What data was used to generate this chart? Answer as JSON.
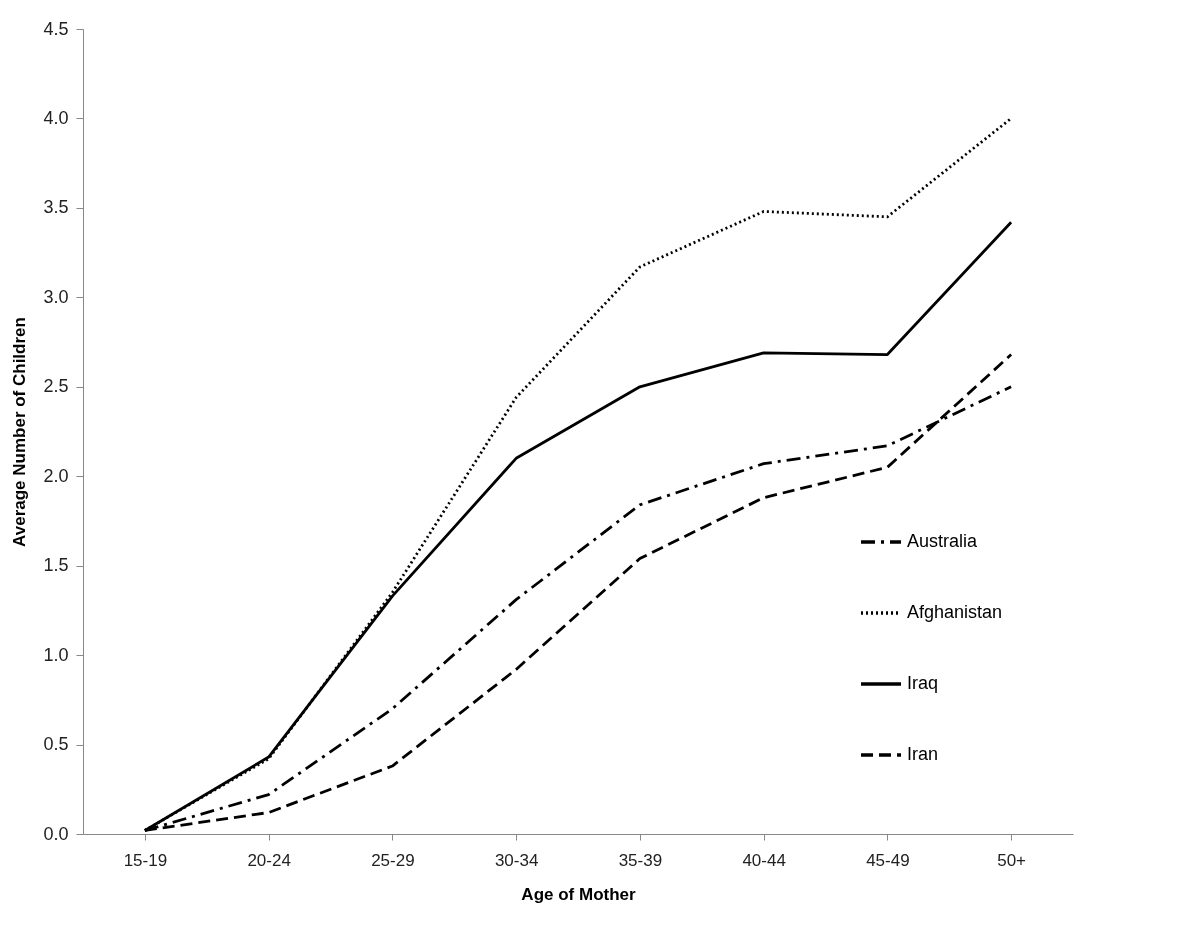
{
  "chart_data": {
    "type": "line",
    "xlabel": "Age of Mother",
    "ylabel": "Average Number of Children",
    "categories": [
      "15-19",
      "20-24",
      "25-29",
      "30-34",
      "35-39",
      "40-44",
      "45-49",
      "50+"
    ],
    "series": [
      {
        "name": "Australia",
        "color": "#000000",
        "line_style": "dashdot",
        "values": [
          0.02,
          0.22,
          0.7,
          1.31,
          1.84,
          2.07,
          2.17,
          2.5
        ]
      },
      {
        "name": "Afghanistan",
        "color": "#000000",
        "line_style": "dotted",
        "values": [
          0.02,
          0.42,
          1.35,
          2.44,
          3.17,
          3.48,
          3.45,
          4.0
        ]
      },
      {
        "name": "Iraq",
        "color": "#000000",
        "line_style": "solid",
        "values": [
          0.02,
          0.43,
          1.33,
          2.1,
          2.5,
          2.69,
          2.68,
          3.42
        ]
      },
      {
        "name": "Iran",
        "color": "#000000",
        "line_style": "dashed",
        "values": [
          0.02,
          0.12,
          0.38,
          0.92,
          1.54,
          1.88,
          2.05,
          2.68
        ]
      }
    ],
    "ylim": [
      0,
      4.5
    ],
    "yticks": [
      {
        "value": 0,
        "label": "0.0"
      },
      {
        "value": 0.5,
        "label": "0.5"
      },
      {
        "value": 1,
        "label": "1.0"
      },
      {
        "value": 1.5,
        "label": "1.5"
      },
      {
        "value": 2,
        "label": "2.0"
      },
      {
        "value": 2.5,
        "label": "2.5"
      },
      {
        "value": 3,
        "label": "3.0"
      },
      {
        "value": 3.5,
        "label": "3.5"
      },
      {
        "value": 4,
        "label": "4.0"
      },
      {
        "value": 4.5,
        "label": "4.5"
      }
    ],
    "grid": false,
    "legend": "bottom right",
    "marker": "none"
  }
}
